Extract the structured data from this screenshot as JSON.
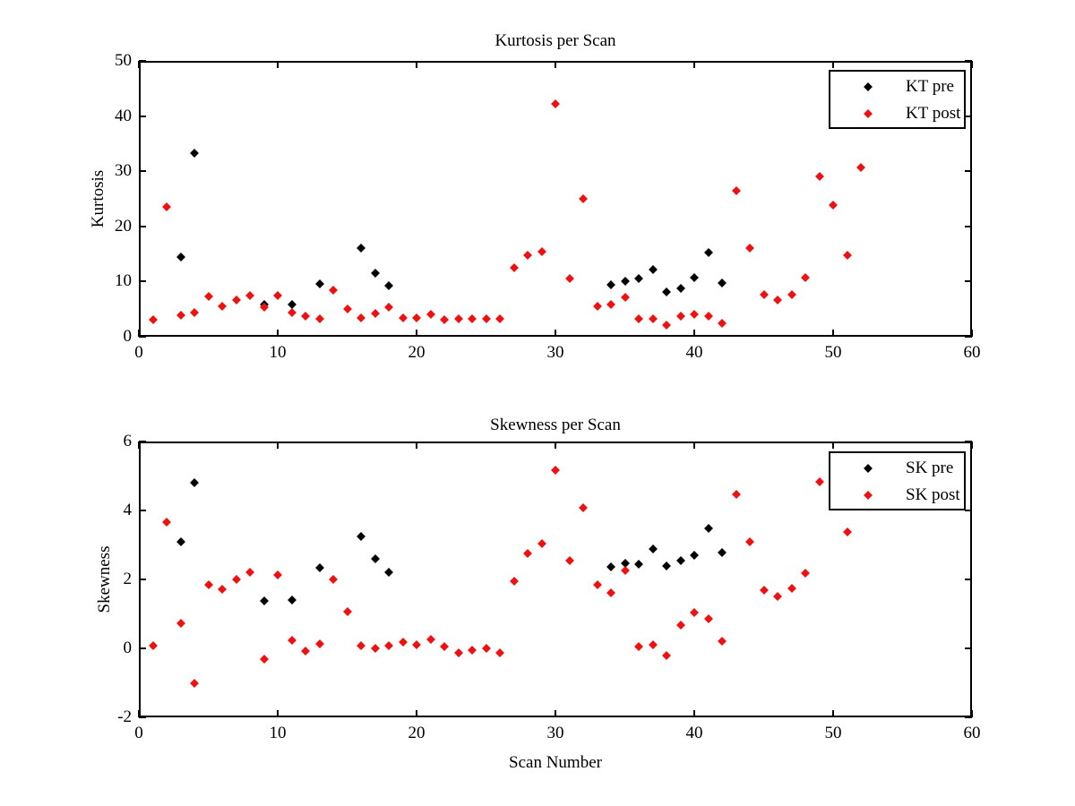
{
  "colors": {
    "pre": "#000000",
    "post": "#ee1111",
    "axis": "#000000",
    "background": "#ffffff"
  },
  "chart_data": [
    {
      "type": "scatter",
      "title": "Kurtosis per Scan",
      "xlabel": "",
      "ylabel": "Kurtosis",
      "xlim": [
        0,
        60
      ],
      "ylim": [
        0,
        50
      ],
      "xticks": [
        0,
        10,
        20,
        30,
        40,
        50,
        60
      ],
      "yticks": [
        0,
        10,
        20,
        30,
        40,
        50
      ],
      "grid": false,
      "legend": {
        "position": "top-right",
        "entries": [
          {
            "label": "KT pre",
            "color": "#000000"
          },
          {
            "label": "KT post",
            "color": "#ee1111"
          }
        ]
      },
      "series": [
        {
          "name": "KT pre",
          "marker": "diamond",
          "color": "#000000",
          "points": [
            [
              3,
              14.4
            ],
            [
              4,
              33.2
            ],
            [
              9,
              5.8
            ],
            [
              11,
              5.8
            ],
            [
              13,
              9.6
            ],
            [
              16,
              16.1
            ],
            [
              17,
              11.5
            ],
            [
              18,
              9.2
            ],
            [
              34,
              9.4
            ],
            [
              35,
              10.0
            ],
            [
              36,
              10.6
            ],
            [
              37,
              12.2
            ],
            [
              38,
              8.1
            ],
            [
              39,
              8.8
            ],
            [
              40,
              10.7
            ],
            [
              41,
              15.3
            ],
            [
              42,
              9.8
            ]
          ]
        },
        {
          "name": "KT post",
          "marker": "diamond",
          "color": "#ee1111",
          "points": [
            [
              1,
              3.1
            ],
            [
              2,
              23.5
            ],
            [
              3,
              3.9
            ],
            [
              4,
              4.4
            ],
            [
              5,
              7.3
            ],
            [
              6,
              5.5
            ],
            [
              7,
              6.6
            ],
            [
              8,
              7.4
            ],
            [
              9,
              5.3
            ],
            [
              10,
              7.4
            ],
            [
              11,
              4.4
            ],
            [
              12,
              3.7
            ],
            [
              13,
              3.2
            ],
            [
              14,
              8.4
            ],
            [
              15,
              5.0
            ],
            [
              16,
              3.4
            ],
            [
              17,
              4.2
            ],
            [
              18,
              5.3
            ],
            [
              19,
              3.4
            ],
            [
              20,
              3.4
            ],
            [
              21,
              4.0
            ],
            [
              22,
              3.1
            ],
            [
              23,
              3.3
            ],
            [
              24,
              3.3
            ],
            [
              25,
              3.3
            ],
            [
              26,
              3.3
            ],
            [
              27,
              12.5
            ],
            [
              28,
              14.7
            ],
            [
              29,
              15.4
            ],
            [
              30,
              42.2
            ],
            [
              31,
              10.6
            ],
            [
              32,
              25.0
            ],
            [
              33,
              5.6
            ],
            [
              34,
              5.8
            ],
            [
              35,
              7.1
            ],
            [
              36,
              3.2
            ],
            [
              37,
              3.3
            ],
            [
              38,
              2.1
            ],
            [
              39,
              3.8
            ],
            [
              40,
              4.1
            ],
            [
              41,
              3.7
            ],
            [
              42,
              2.5
            ],
            [
              43,
              26.4
            ],
            [
              44,
              16.1
            ],
            [
              45,
              7.7
            ],
            [
              46,
              6.6
            ],
            [
              47,
              7.7
            ],
            [
              48,
              10.7
            ],
            [
              49,
              29.1
            ],
            [
              50,
              23.9
            ],
            [
              51,
              14.8
            ],
            [
              52,
              30.7
            ]
          ]
        }
      ]
    },
    {
      "type": "scatter",
      "title": "Skewness per Scan",
      "xlabel": "Scan Number",
      "ylabel": "Skewness",
      "xlim": [
        0,
        60
      ],
      "ylim": [
        -2,
        6
      ],
      "xticks": [
        0,
        10,
        20,
        30,
        40,
        50,
        60
      ],
      "yticks": [
        -2,
        0,
        2,
        4,
        6
      ],
      "grid": false,
      "legend": {
        "position": "top-right",
        "entries": [
          {
            "label": "SK pre",
            "color": "#000000"
          },
          {
            "label": "SK post",
            "color": "#ee1111"
          }
        ]
      },
      "series": [
        {
          "name": "SK pre",
          "marker": "diamond",
          "color": "#000000",
          "points": [
            [
              3,
              3.1
            ],
            [
              4,
              4.8
            ],
            [
              9,
              1.38
            ],
            [
              11,
              1.4
            ],
            [
              13,
              2.34
            ],
            [
              16,
              3.25
            ],
            [
              17,
              2.6
            ],
            [
              18,
              2.21
            ],
            [
              34,
              2.36
            ],
            [
              35,
              2.48
            ],
            [
              36,
              2.44
            ],
            [
              37,
              2.88
            ],
            [
              38,
              2.38
            ],
            [
              39,
              2.54
            ],
            [
              40,
              2.7
            ],
            [
              41,
              3.47
            ],
            [
              42,
              2.77
            ]
          ]
        },
        {
          "name": "SK post",
          "marker": "diamond",
          "color": "#ee1111",
          "points": [
            [
              1,
              0.08
            ],
            [
              2,
              3.67
            ],
            [
              3,
              0.74
            ],
            [
              4,
              -1.02
            ],
            [
              5,
              1.84
            ],
            [
              6,
              1.71
            ],
            [
              7,
              2.01
            ],
            [
              8,
              2.21
            ],
            [
              9,
              -0.3
            ],
            [
              10,
              2.14
            ],
            [
              11,
              0.24
            ],
            [
              12,
              -0.08
            ],
            [
              13,
              0.12
            ],
            [
              14,
              2.0
            ],
            [
              15,
              1.07
            ],
            [
              16,
              0.08
            ],
            [
              17,
              0.0
            ],
            [
              18,
              0.08
            ],
            [
              19,
              0.17
            ],
            [
              20,
              0.1
            ],
            [
              21,
              0.27
            ],
            [
              22,
              0.04
            ],
            [
              23,
              -0.13
            ],
            [
              24,
              -0.06
            ],
            [
              25,
              -0.01
            ],
            [
              26,
              -0.14
            ],
            [
              27,
              1.96
            ],
            [
              28,
              2.76
            ],
            [
              29,
              3.04
            ],
            [
              30,
              5.17
            ],
            [
              31,
              2.54
            ],
            [
              32,
              4.08
            ],
            [
              33,
              1.85
            ],
            [
              34,
              1.6
            ],
            [
              35,
              2.26
            ],
            [
              36,
              0.04
            ],
            [
              37,
              0.11
            ],
            [
              38,
              -0.21
            ],
            [
              39,
              0.68
            ],
            [
              40,
              1.04
            ],
            [
              41,
              0.85
            ],
            [
              42,
              0.2
            ],
            [
              43,
              4.48
            ],
            [
              44,
              3.08
            ],
            [
              45,
              1.68
            ],
            [
              46,
              1.5
            ],
            [
              47,
              1.75
            ],
            [
              48,
              2.19
            ],
            [
              49,
              4.84
            ],
            [
              51,
              3.37
            ]
          ]
        }
      ]
    }
  ]
}
